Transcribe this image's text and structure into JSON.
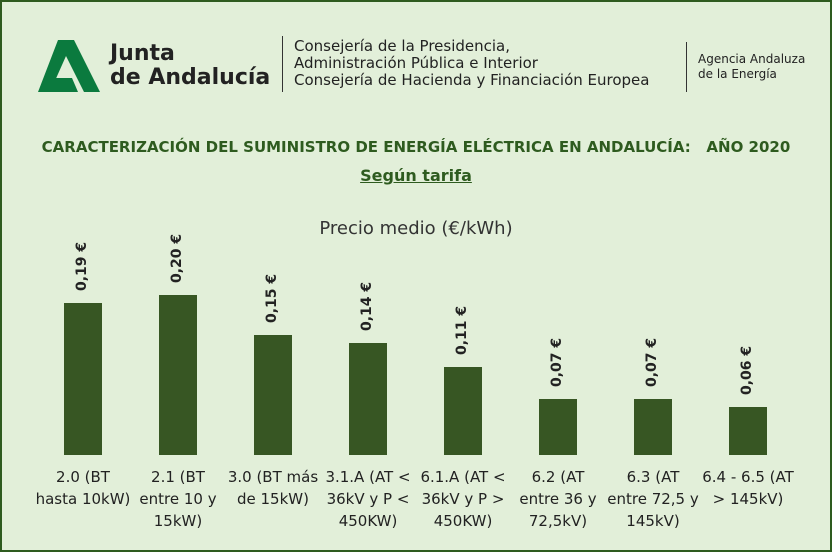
{
  "header": {
    "logo_line1": "Junta",
    "logo_line2": "de Andalucía",
    "dept_lines": [
      "Consejería de la Presidencia,",
      "Administración Pública e Interior",
      "Consejería de Hacienda y Financiación Europea"
    ],
    "agency_lines": [
      "Agencia Andaluza",
      "de la Energía"
    ]
  },
  "chart_data": {
    "type": "bar",
    "title": "CARACTERIZACIÓN DEL SUMINISTRO DE ENERGÍA ELÉCTRICA EN ANDALUCÍA:   AÑO 2020",
    "subtitle": "Según tarifa",
    "chart_title": "Precio medio (€/kWh)",
    "categories": [
      "2.0 (BT hasta 10kW)",
      "2.1 (BT entre 10 y 15kW)",
      "3.0 (BT más de 15kW)",
      "3.1.A (AT < 36kV y P < 450KW)",
      "6.1.A (AT < 36kV y P > 450KW)",
      "6.2 (AT entre 36 y 72,5kV)",
      "6.3 (AT entre 72,5 y 145kV)",
      "6.4 - 6.5 (AT > 145kV)"
    ],
    "values": [
      0.19,
      0.2,
      0.15,
      0.14,
      0.11,
      0.07,
      0.07,
      0.06
    ],
    "value_labels": [
      "0,19 €",
      "0,20 €",
      "0,15 €",
      "0,14 €",
      "0,11 €",
      "0,07 €",
      "0,07 €",
      "0,06 €"
    ],
    "color": "#375623"
  }
}
